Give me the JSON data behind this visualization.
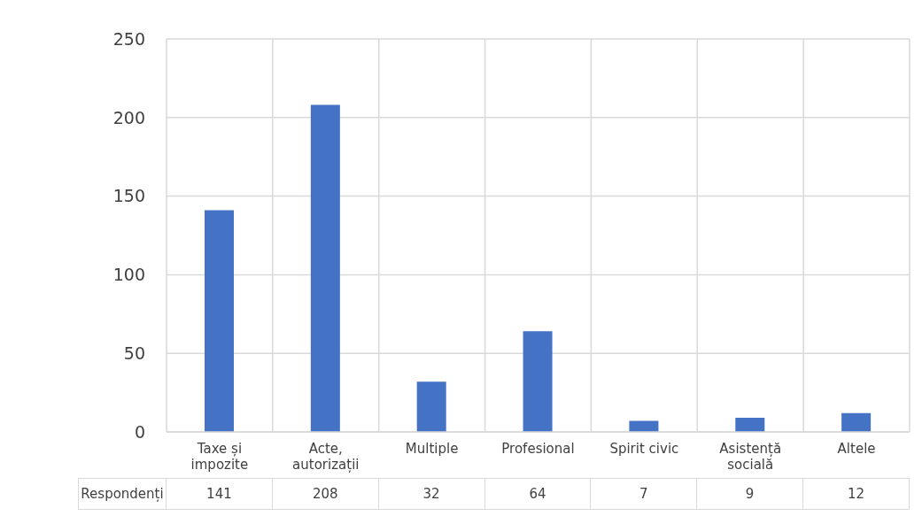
{
  "chart_data": {
    "type": "bar",
    "categories": [
      "Taxe și impozite",
      "Acte, autorizații",
      "Multiple",
      "Profesional",
      "Spirit civic",
      "Asistență socială",
      "Altele"
    ],
    "series": [
      {
        "name": "Respondenți",
        "color": "#4472c4",
        "values": [
          141,
          208,
          32,
          64,
          7,
          9,
          12
        ]
      }
    ],
    "ylim": [
      0,
      250
    ],
    "yticks": [
      0,
      50,
      100,
      150,
      200,
      250
    ],
    "grid": true,
    "data_labels": true
  }
}
